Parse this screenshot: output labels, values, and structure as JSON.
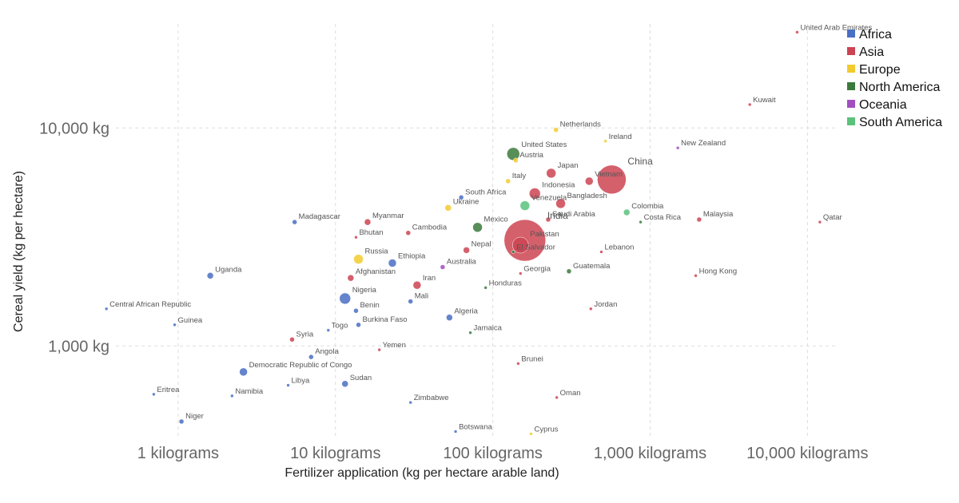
{
  "chart_data": {
    "type": "scatter",
    "xlabel": "Fertilizer application (kg per hectare arable land)",
    "ylabel": "Cereal yield (kg per hectare)",
    "x_scale": "log",
    "y_scale": "log",
    "xlim": [
      0.3,
      15000
    ],
    "ylim": [
      380,
      30000
    ],
    "x_ticks": [
      {
        "value": 1,
        "label": "1 kilograms"
      },
      {
        "value": 10,
        "label": "10 kilograms"
      },
      {
        "value": 100,
        "label": "100 kilograms"
      },
      {
        "value": 1000,
        "label": "1,000 kilograms"
      },
      {
        "value": 10000,
        "label": "10,000 kilograms"
      }
    ],
    "y_ticks": [
      {
        "value": 1000,
        "label": "1,000 kg"
      },
      {
        "value": 10000,
        "label": "10,000 kg"
      }
    ],
    "grid": true,
    "legend_position": "top-right",
    "series": [
      {
        "name": "Africa",
        "color": "#4a6ec4"
      },
      {
        "name": "Asia",
        "color": "#cc4452"
      },
      {
        "name": "Europe",
        "color": "#f2cb2f"
      },
      {
        "name": "North America",
        "color": "#3b7a3b"
      },
      {
        "name": "Oceania",
        "color": "#a14fc0"
      },
      {
        "name": "South America",
        "color": "#5bc27b"
      }
    ],
    "points": [
      {
        "label": "United Arab Emirates",
        "x": 8600,
        "y": 27500,
        "series": "Asia",
        "size": 2
      },
      {
        "label": "Kuwait",
        "x": 4300,
        "y": 12800,
        "series": "Asia",
        "size": 2
      },
      {
        "label": "Netherlands",
        "x": 252,
        "y": 9800,
        "series": "Europe",
        "size": 3
      },
      {
        "label": "Ireland",
        "x": 520,
        "y": 8700,
        "series": "Europe",
        "size": 2
      },
      {
        "label": "United States",
        "x": 135,
        "y": 7600,
        "series": "North America",
        "size": 8
      },
      {
        "label": "Austria",
        "x": 140,
        "y": 7100,
        "series": "Europe",
        "size": 3
      },
      {
        "label": "New Zealand",
        "x": 1500,
        "y": 8100,
        "series": "Oceania",
        "size": 2
      },
      {
        "label": "China",
        "x": 570,
        "y": 5800,
        "series": "Asia",
        "size": 18
      },
      {
        "label": "Japan",
        "x": 235,
        "y": 6200,
        "series": "Asia",
        "size": 6
      },
      {
        "label": "Vietnam",
        "x": 410,
        "y": 5700,
        "series": "Asia",
        "size": 5
      },
      {
        "label": "Italy",
        "x": 125,
        "y": 5700,
        "series": "Europe",
        "size": 3
      },
      {
        "label": "Indonesia",
        "x": 185,
        "y": 5000,
        "series": "Asia",
        "size": 7
      },
      {
        "label": "Bangladesh",
        "x": 270,
        "y": 4500,
        "series": "Asia",
        "size": 6
      },
      {
        "label": "South Africa",
        "x": 63,
        "y": 4800,
        "series": "Africa",
        "size": 3
      },
      {
        "label": "Venezuela",
        "x": 160,
        "y": 4400,
        "series": "South America",
        "size": 6
      },
      {
        "label": "Ukraine",
        "x": 52,
        "y": 4300,
        "series": "Europe",
        "size": 4
      },
      {
        "label": "Colombia",
        "x": 710,
        "y": 4100,
        "series": "South America",
        "size": 4
      },
      {
        "label": "Costa Rica",
        "x": 870,
        "y": 3700,
        "series": "North America",
        "size": 2
      },
      {
        "label": "Malaysia",
        "x": 2050,
        "y": 3800,
        "series": "Asia",
        "size": 3
      },
      {
        "label": "Qatar",
        "x": 12000,
        "y": 3700,
        "series": "Asia",
        "size": 2
      },
      {
        "label": "Mexico",
        "x": 80,
        "y": 3500,
        "series": "North America",
        "size": 6
      },
      {
        "label": "India",
        "x": 160,
        "y": 3050,
        "series": "Asia",
        "size": 26
      },
      {
        "label": "Saudi Arabia",
        "x": 225,
        "y": 3800,
        "series": "Asia",
        "size": 3
      },
      {
        "label": "Madagascar",
        "x": 5.5,
        "y": 3700,
        "series": "Africa",
        "size": 3
      },
      {
        "label": "Myanmar",
        "x": 16,
        "y": 3700,
        "series": "Asia",
        "size": 4
      },
      {
        "label": "Cambodia",
        "x": 29,
        "y": 3300,
        "series": "Asia",
        "size": 3
      },
      {
        "label": "Bhutan",
        "x": 13.5,
        "y": 3150,
        "series": "Asia",
        "size": 2
      },
      {
        "label": "Pakistan",
        "x": 150,
        "y": 2900,
        "series": "Asia",
        "size": 10
      },
      {
        "label": "El Salvador",
        "x": 135,
        "y": 2700,
        "series": "North America",
        "size": 2
      },
      {
        "label": "Nepal",
        "x": 68,
        "y": 2750,
        "series": "Asia",
        "size": 4
      },
      {
        "label": "Lebanon",
        "x": 490,
        "y": 2700,
        "series": "Asia",
        "size": 2
      },
      {
        "label": "Russia",
        "x": 14,
        "y": 2500,
        "series": "Europe",
        "size": 6
      },
      {
        "label": "Ethiopia",
        "x": 23,
        "y": 2400,
        "series": "Africa",
        "size": 5
      },
      {
        "label": "Australia",
        "x": 48,
        "y": 2300,
        "series": "Oceania",
        "size": 3
      },
      {
        "label": "Georgia",
        "x": 150,
        "y": 2150,
        "series": "Asia",
        "size": 2
      },
      {
        "label": "Guatemala",
        "x": 305,
        "y": 2200,
        "series": "North America",
        "size": 3
      },
      {
        "label": "Hong Kong",
        "x": 1950,
        "y": 2100,
        "series": "Asia",
        "size": 2
      },
      {
        "label": "Uganda",
        "x": 1.6,
        "y": 2100,
        "series": "Africa",
        "size": 4
      },
      {
        "label": "Afghanistan",
        "x": 12.5,
        "y": 2050,
        "series": "Asia",
        "size": 4
      },
      {
        "label": "Iran",
        "x": 33,
        "y": 1900,
        "series": "Asia",
        "size": 5
      },
      {
        "label": "Honduras",
        "x": 90,
        "y": 1850,
        "series": "North America",
        "size": 2
      },
      {
        "label": "Nigeria",
        "x": 11.5,
        "y": 1650,
        "series": "Africa",
        "size": 7
      },
      {
        "label": "Mali",
        "x": 30,
        "y": 1600,
        "series": "Africa",
        "size": 3
      },
      {
        "label": "Benin",
        "x": 13.5,
        "y": 1450,
        "series": "Africa",
        "size": 3
      },
      {
        "label": "Central African Republic",
        "x": 0.35,
        "y": 1480,
        "series": "Africa",
        "size": 2
      },
      {
        "label": "Jordan",
        "x": 420,
        "y": 1480,
        "series": "Asia",
        "size": 2
      },
      {
        "label": "Algeria",
        "x": 53,
        "y": 1350,
        "series": "Africa",
        "size": 4
      },
      {
        "label": "Burkina Faso",
        "x": 14,
        "y": 1250,
        "series": "Africa",
        "size": 3
      },
      {
        "label": "Guinea",
        "x": 0.95,
        "y": 1250,
        "series": "Africa",
        "size": 2
      },
      {
        "label": "Togo",
        "x": 9,
        "y": 1180,
        "series": "Africa",
        "size": 2
      },
      {
        "label": "Jamaica",
        "x": 72,
        "y": 1150,
        "series": "North America",
        "size": 2
      },
      {
        "label": "Syria",
        "x": 5.3,
        "y": 1070,
        "series": "Asia",
        "size": 3
      },
      {
        "label": "Yemen",
        "x": 19,
        "y": 960,
        "series": "Asia",
        "size": 2
      },
      {
        "label": "Angola",
        "x": 7,
        "y": 890,
        "series": "Africa",
        "size": 3
      },
      {
        "label": "Democratic Republic of Congo",
        "x": 2.6,
        "y": 760,
        "series": "Africa",
        "size": 5
      },
      {
        "label": "Brunei",
        "x": 145,
        "y": 830,
        "series": "Asia",
        "size": 2
      },
      {
        "label": "Sudan",
        "x": 11.5,
        "y": 670,
        "series": "Africa",
        "size": 4
      },
      {
        "label": "Libya",
        "x": 5,
        "y": 660,
        "series": "Africa",
        "size": 2
      },
      {
        "label": "Eritrea",
        "x": 0.7,
        "y": 600,
        "series": "Africa",
        "size": 2
      },
      {
        "label": "Namibia",
        "x": 2.2,
        "y": 590,
        "series": "Africa",
        "size": 2
      },
      {
        "label": "Oman",
        "x": 255,
        "y": 580,
        "series": "Asia",
        "size": 2
      },
      {
        "label": "Zimbabwe",
        "x": 30,
        "y": 550,
        "series": "Africa",
        "size": 2
      },
      {
        "label": "Niger",
        "x": 1.05,
        "y": 450,
        "series": "Africa",
        "size": 3
      },
      {
        "label": "Botswana",
        "x": 58,
        "y": 405,
        "series": "Africa",
        "size": 2
      },
      {
        "label": "Cyprus",
        "x": 175,
        "y": 395,
        "series": "Europe",
        "size": 2
      }
    ]
  }
}
